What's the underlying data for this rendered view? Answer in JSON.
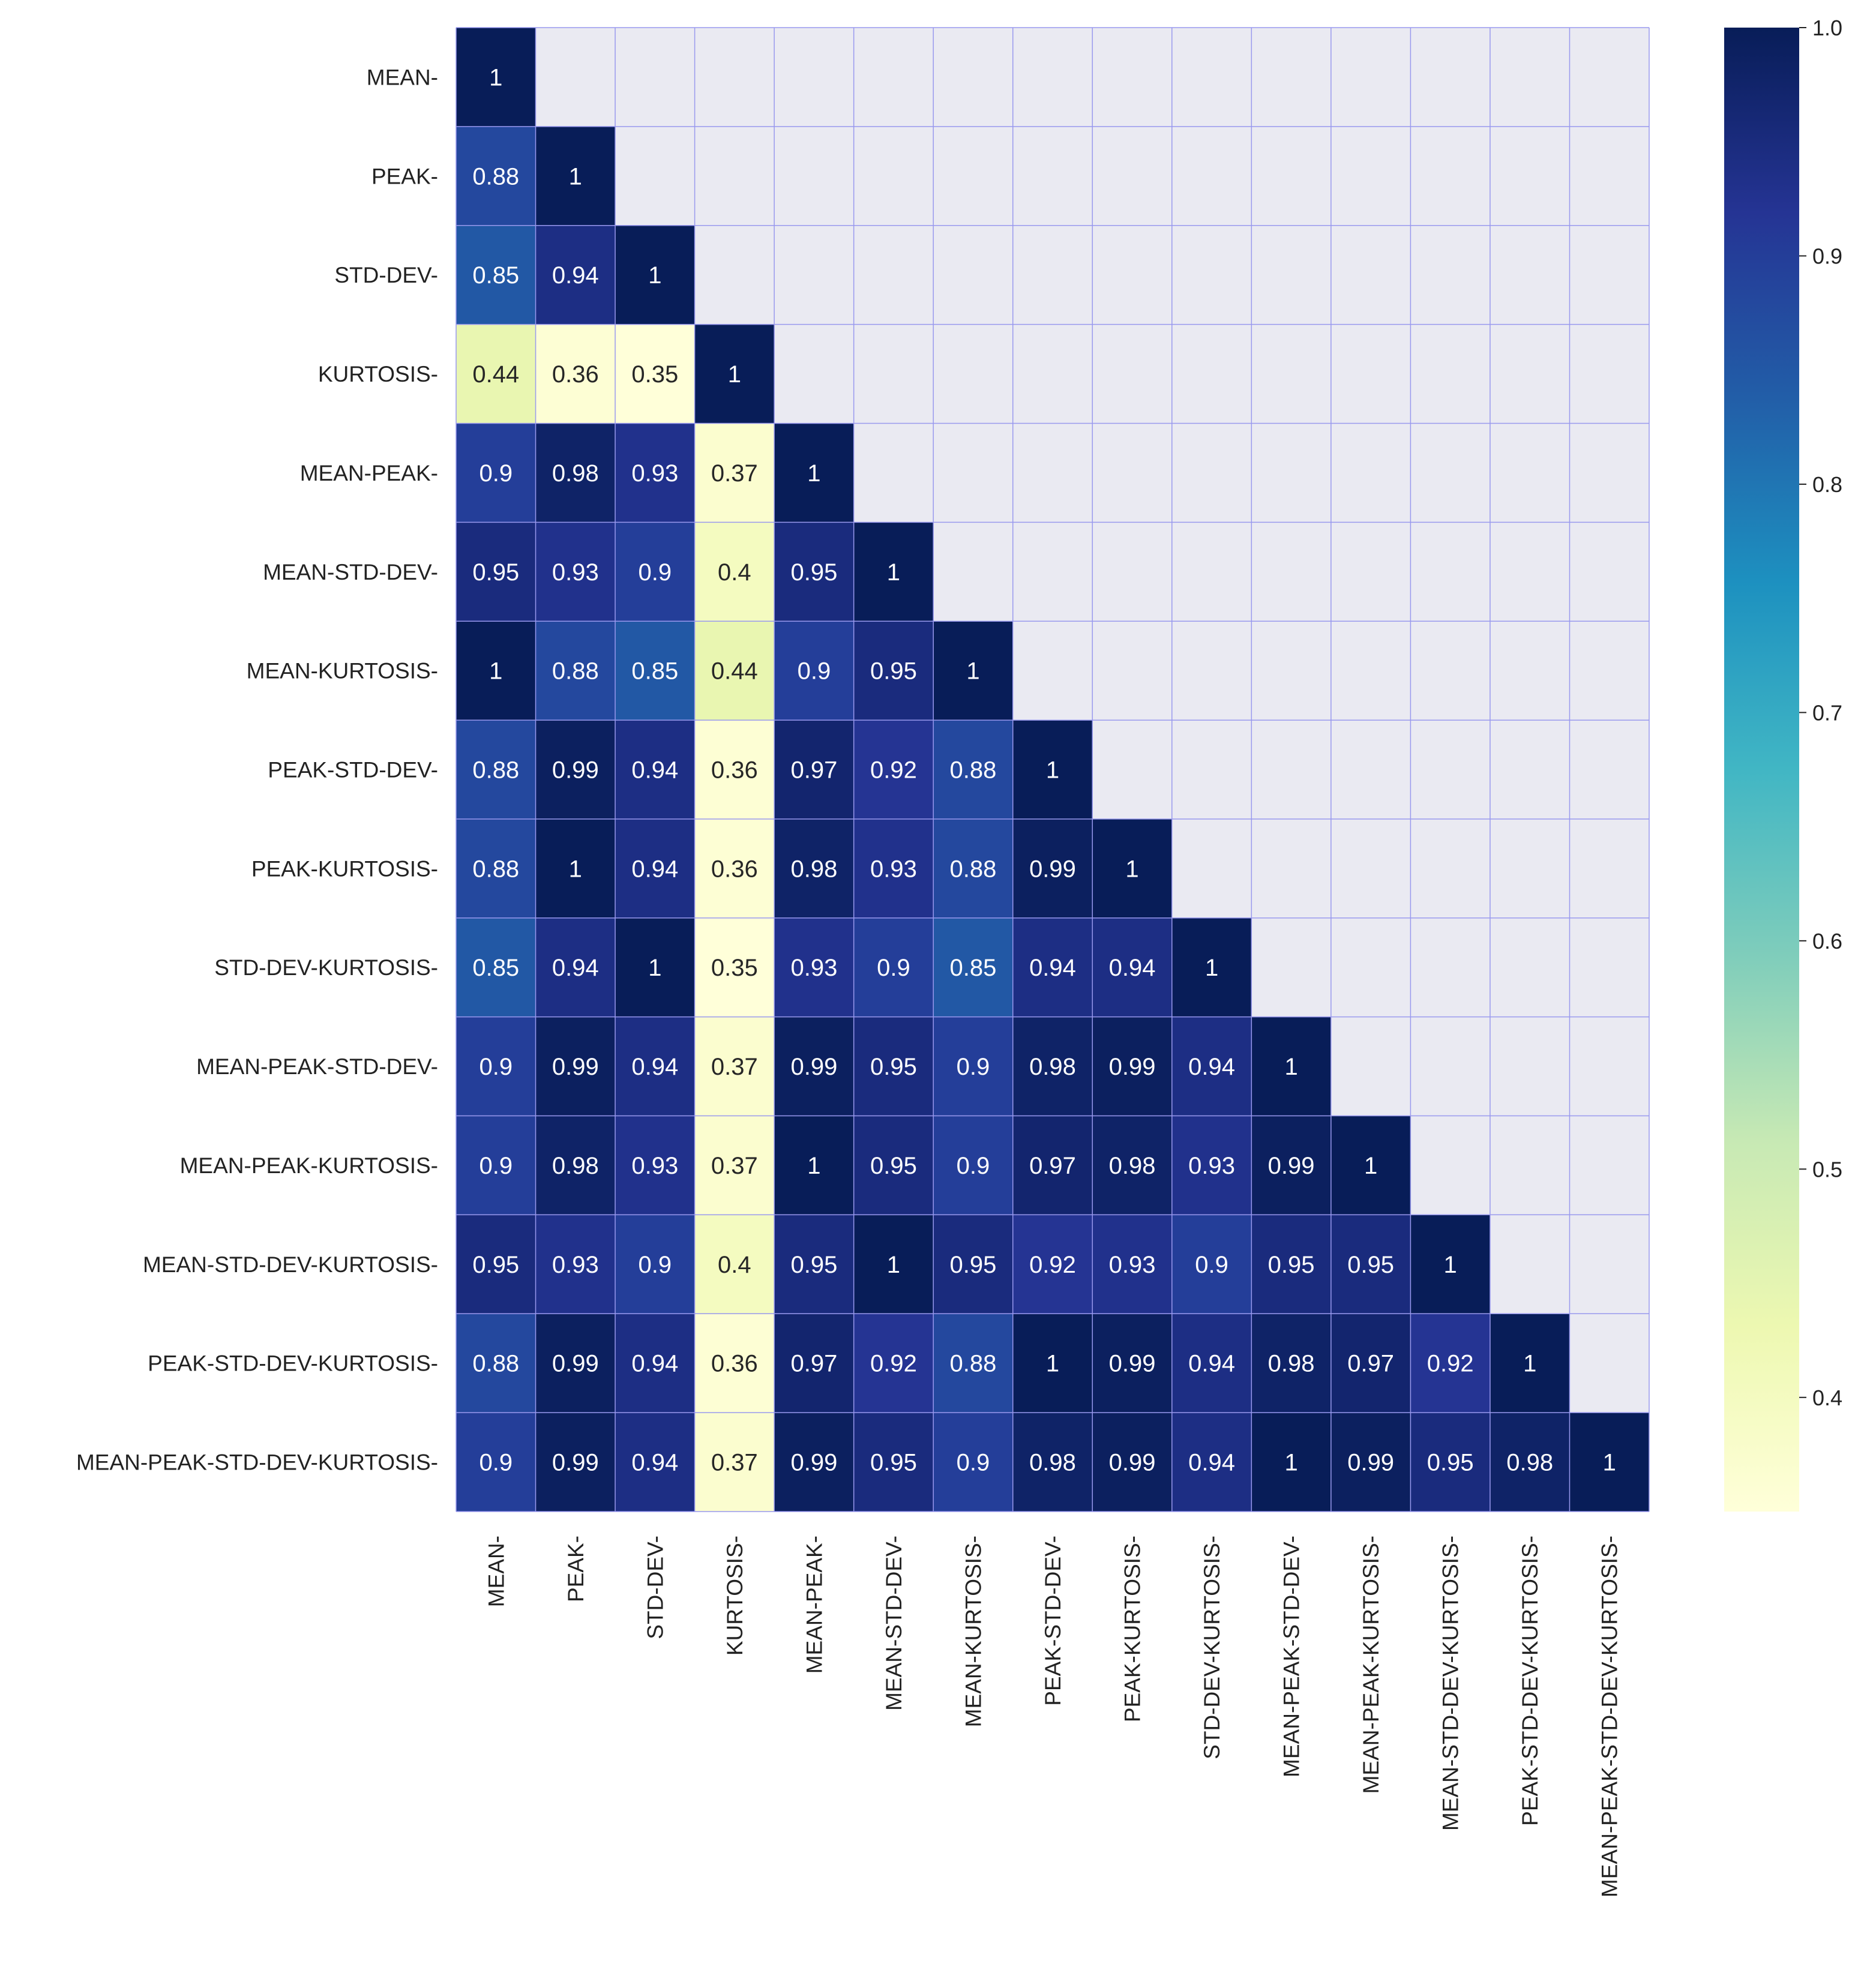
{
  "chart_data": {
    "type": "heatmap",
    "title": "",
    "xlabel": "",
    "ylabel": "",
    "labels": [
      "MEAN-",
      "PEAK-",
      "STD-DEV-",
      "KURTOSIS-",
      "MEAN-PEAK-",
      "MEAN-STD-DEV-",
      "MEAN-KURTOSIS-",
      "PEAK-STD-DEV-",
      "PEAK-KURTOSIS-",
      "STD-DEV-KURTOSIS-",
      "MEAN-PEAK-STD-DEV-",
      "MEAN-PEAK-KURTOSIS-",
      "MEAN-STD-DEV-KURTOSIS-",
      "PEAK-STD-DEV-KURTOSIS-",
      "MEAN-PEAK-STD-DEV-KURTOSIS-"
    ],
    "matrix_lower_triangle": [
      [
        "1"
      ],
      [
        "0.88",
        "1"
      ],
      [
        "0.85",
        "0.94",
        "1"
      ],
      [
        "0.44",
        "0.36",
        "0.35",
        "1"
      ],
      [
        "0.9",
        "0.98",
        "0.93",
        "0.37",
        "1"
      ],
      [
        "0.95",
        "0.93",
        "0.9",
        "0.4",
        "0.95",
        "1"
      ],
      [
        "1",
        "0.88",
        "0.85",
        "0.44",
        "0.9",
        "0.95",
        "1"
      ],
      [
        "0.88",
        "0.99",
        "0.94",
        "0.36",
        "0.97",
        "0.92",
        "0.88",
        "1"
      ],
      [
        "0.88",
        "1",
        "0.94",
        "0.36",
        "0.98",
        "0.93",
        "0.88",
        "0.99",
        "1"
      ],
      [
        "0.85",
        "0.94",
        "1",
        "0.35",
        "0.93",
        "0.9",
        "0.85",
        "0.94",
        "0.94",
        "1"
      ],
      [
        "0.9",
        "0.99",
        "0.94",
        "0.37",
        "0.99",
        "0.95",
        "0.9",
        "0.98",
        "0.99",
        "0.94",
        "1"
      ],
      [
        "0.9",
        "0.98",
        "0.93",
        "0.37",
        "1",
        "0.95",
        "0.9",
        "0.97",
        "0.98",
        "0.93",
        "0.99",
        "1"
      ],
      [
        "0.95",
        "0.93",
        "0.9",
        "0.4",
        "0.95",
        "1",
        "0.95",
        "0.92",
        "0.93",
        "0.9",
        "0.95",
        "0.95",
        "1"
      ],
      [
        "0.88",
        "0.99",
        "0.94",
        "0.36",
        "0.97",
        "0.92",
        "0.88",
        "1",
        "0.99",
        "0.94",
        "0.98",
        "0.97",
        "0.92",
        "1"
      ],
      [
        "0.9",
        "0.99",
        "0.94",
        "0.37",
        "0.99",
        "0.95",
        "0.9",
        "0.98",
        "0.99",
        "0.94",
        "1",
        "0.99",
        "0.95",
        "0.98",
        "1"
      ]
    ],
    "upper_triangle_masked": true,
    "colormap": "YlGnBu",
    "value_range": [
      0.35,
      1.0
    ],
    "colorbar": {
      "ticks": [
        0.4,
        0.5,
        0.6,
        0.7,
        0.8,
        0.9,
        1.0
      ],
      "tick_labels": [
        "0.4",
        "0.5",
        "0.6",
        "0.7",
        "0.8",
        "0.9",
        "1.0"
      ],
      "position": "right"
    },
    "colors": {
      "mask_background": "#eaeaf2",
      "grid_line": "#9999ee",
      "text_on_dark": "#ffffff",
      "text_on_light": "#262626"
    }
  }
}
